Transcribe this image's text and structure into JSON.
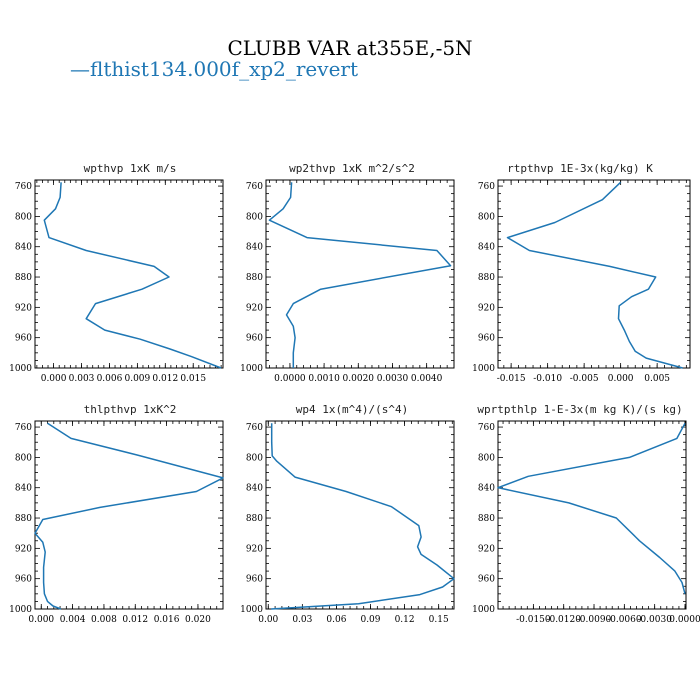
{
  "figure": {
    "title": "CLUBB VAR at355E,-5N",
    "legend_label": "flthist134.000f_xp2_revert",
    "legend_marker": "—",
    "series_color": "#1f77b4"
  },
  "chart_data": [
    {
      "type": "line",
      "title": "wpthvp  1xK m/s",
      "xlim": [
        -0.002,
        0.0182
      ],
      "ylim": [
        1000,
        752
      ],
      "xticks": [
        0.0,
        0.003,
        0.006,
        0.009,
        0.012,
        0.015
      ],
      "xtick_labels": [
        "0.000",
        "0.003",
        "0.006",
        "0.009",
        "0.012",
        "0.015"
      ],
      "yticks": [
        760,
        800,
        840,
        880,
        920,
        960,
        1000
      ],
      "series": [
        {
          "x": [
            0.0008,
            0.0007,
            0.0002,
            -0.001,
            -0.0005,
            0.0035,
            0.0108,
            0.0124,
            0.0095,
            0.0045,
            0.0035,
            0.0055,
            0.0093,
            0.0125,
            0.0148,
            0.018
          ],
          "y": [
            755,
            775,
            790,
            805,
            828,
            845,
            866,
            880,
            896,
            915,
            935,
            950,
            962,
            975,
            985,
            1000
          ]
        }
      ]
    },
    {
      "type": "line",
      "title": "wp2thvp  1xK m^2/s^2",
      "xlim": [
        -0.0007,
        0.0048
      ],
      "ylim": [
        1000,
        752
      ],
      "xticks": [
        0.0,
        0.001,
        0.002,
        0.003,
        0.004
      ],
      "xtick_labels": [
        "0.0000",
        "0.0010",
        "0.0020",
        "0.0030",
        "0.0040"
      ],
      "yticks": [
        760,
        800,
        840,
        880,
        920,
        960,
        1000
      ],
      "series": [
        {
          "x": [
            5e-05,
            2e-05,
            -0.0002,
            -0.0006,
            0.0005,
            0.0043,
            0.0047,
            0.0009,
            0.0001,
            -0.0001,
            0.0001,
            0.00015,
            0.0001,
            0.0001
          ],
          "y": [
            755,
            775,
            790,
            805,
            828,
            845,
            865,
            896,
            915,
            930,
            945,
            960,
            980,
            1000
          ]
        }
      ]
    },
    {
      "type": "line",
      "title": "rtpthvp  1E-3x(kg/kg) K",
      "xlim": [
        -0.0168,
        0.0095
      ],
      "ylim": [
        1000,
        752
      ],
      "xticks": [
        -0.015,
        -0.01,
        -0.005,
        0.0,
        0.005
      ],
      "xtick_labels": [
        "-0.015",
        "-0.010",
        "-0.005",
        "0.000",
        "0.005"
      ],
      "yticks": [
        760,
        800,
        840,
        880,
        920,
        960,
        1000
      ],
      "series": [
        {
          "x": [
            0.0,
            -0.0025,
            -0.009,
            -0.0155,
            -0.0125,
            -0.0015,
            0.0048,
            0.0038,
            0.0015,
            -0.0002,
            -0.0003,
            0.0005,
            0.0012,
            0.002,
            0.0035,
            0.0085
          ],
          "y": [
            755,
            778,
            808,
            828,
            845,
            866,
            880,
            896,
            906,
            918,
            935,
            950,
            965,
            978,
            987,
            1000
          ]
        }
      ]
    },
    {
      "type": "line",
      "title": "thlpthvp  1xK^2",
      "xlim": [
        -0.0008,
        0.0232
      ],
      "ylim": [
        1000,
        752
      ],
      "xticks": [
        0.0,
        0.004,
        0.008,
        0.012,
        0.016,
        0.02
      ],
      "xtick_labels": [
        "0.000",
        "0.004",
        "0.008",
        "0.012",
        "0.016",
        "0.020"
      ],
      "yticks": [
        760,
        800,
        840,
        880,
        920,
        960,
        1000
      ],
      "series": [
        {
          "x": [
            0.0008,
            0.0038,
            0.0123,
            0.0232,
            0.0198,
            0.0075,
            0.0002,
            -0.0008,
            0.0002,
            0.0005,
            0.0003,
            0.0003,
            0.0004,
            0.0008,
            0.0015,
            0.0025
          ],
          "y": [
            755,
            775,
            797,
            827,
            845,
            866,
            882,
            900,
            912,
            925,
            945,
            965,
            980,
            990,
            996,
            1000
          ]
        }
      ]
    },
    {
      "type": "line",
      "title": "wp4  1x(m^4)/(s^4)",
      "xlim": [
        -0.002,
        0.1635
      ],
      "ylim": [
        1000,
        752
      ],
      "xticks": [
        0.0,
        0.03,
        0.06,
        0.09,
        0.12,
        0.15
      ],
      "xtick_labels": [
        "0.00",
        "0.03",
        "0.06",
        "0.09",
        "0.12",
        "0.15"
      ],
      "yticks": [
        760,
        800,
        840,
        880,
        920,
        960,
        1000
      ],
      "series": [
        {
          "x": [
            0.003,
            0.003,
            0.0035,
            0.0075,
            0.0235,
            0.0685,
            0.1085,
            0.1325,
            0.1345,
            0.1315,
            0.1345,
            0.1485,
            0.1635,
            0.1535,
            0.1335,
            0.0795,
            0.0025
          ],
          "y": [
            755,
            780,
            798,
            805,
            826,
            845,
            865,
            890,
            905,
            918,
            928,
            942,
            960,
            971,
            981,
            993,
            1000
          ]
        }
      ]
    },
    {
      "type": "line",
      "title": "wprtpthlp  1-E-3x(m kg K)/(s kg)",
      "xlim": [
        -0.0185,
        0.0001
      ],
      "ylim": [
        1000,
        752
      ],
      "xticks": [
        -0.015,
        -0.012,
        -0.009,
        -0.006,
        -0.003,
        0.0
      ],
      "xtick_labels": [
        "-0.0150",
        "-0.0120",
        "-0.0090",
        "-0.0060",
        "-0.0030",
        "0.0000"
      ],
      "yticks": [
        760,
        800,
        840,
        880,
        920,
        960,
        1000
      ],
      "series": [
        {
          "x": [
            0.0,
            -0.0008,
            -0.0055,
            -0.0155,
            -0.0185,
            -0.0115,
            -0.0068,
            -0.0045,
            -0.0025,
            -0.001,
            -0.0003,
            0.0
          ],
          "y": [
            755,
            775,
            800,
            825,
            840,
            860,
            880,
            910,
            932,
            950,
            965,
            980
          ]
        }
      ]
    }
  ]
}
